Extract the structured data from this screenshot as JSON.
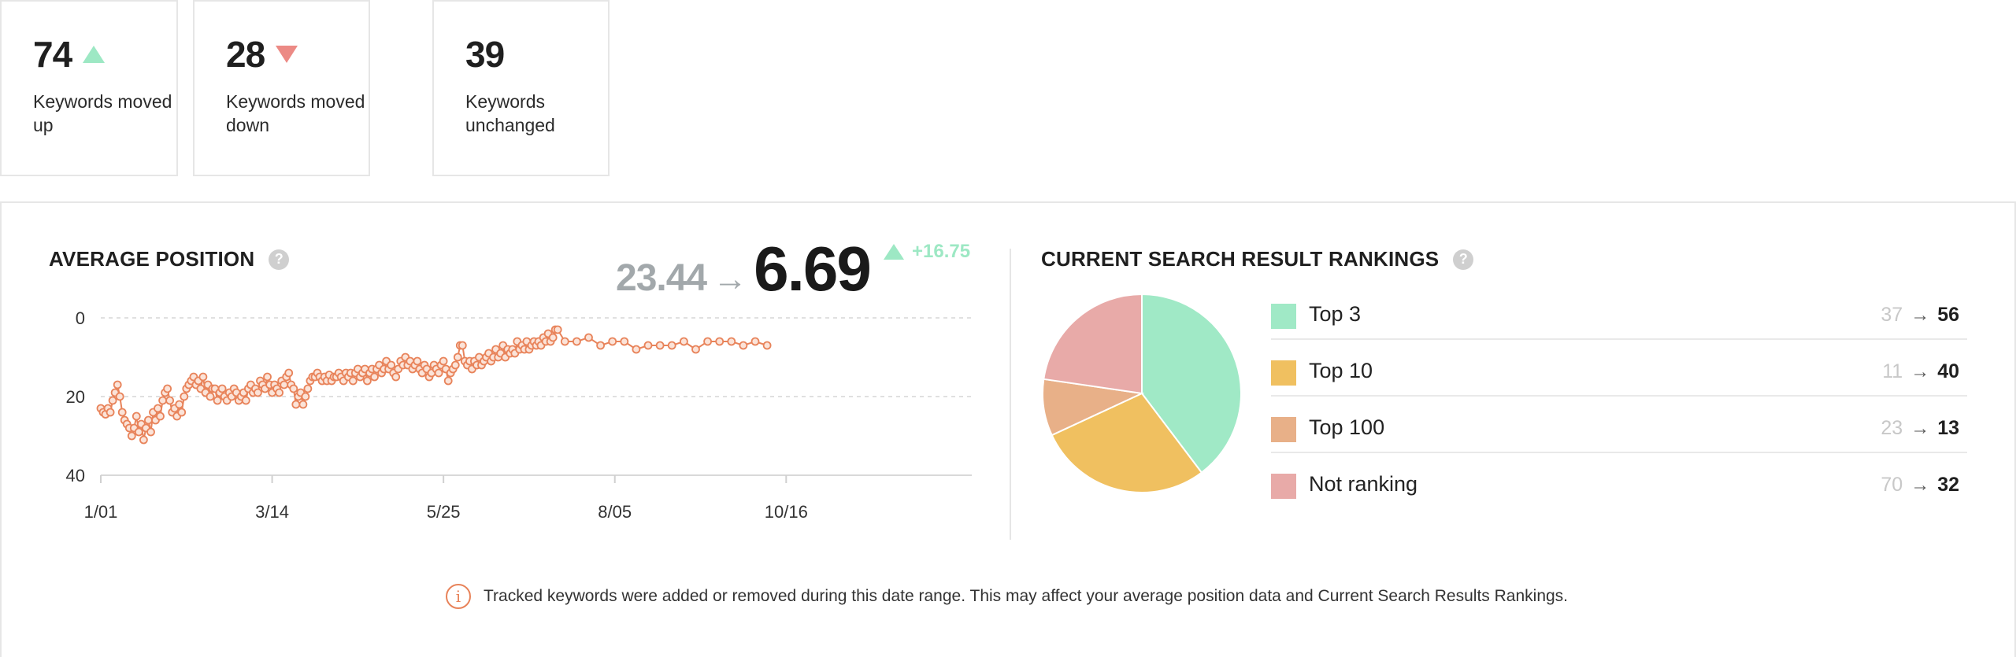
{
  "stats": [
    {
      "value": "74",
      "trend": "up",
      "label": "Keywords moved up"
    },
    {
      "value": "28",
      "trend": "down",
      "label": "Keywords moved down"
    },
    {
      "value": "39",
      "trend": "none",
      "label": "Keywords unchanged"
    }
  ],
  "average_position": {
    "title": "AVERAGE POSITION",
    "help": "?",
    "from": "23.44",
    "arrow": "→",
    "to": "6.69",
    "delta": "+16.75",
    "trend": "up"
  },
  "chart_data": {
    "type": "line",
    "title": "",
    "xlabel": "",
    "ylabel": "",
    "y_inverted": true,
    "ylim": [
      0,
      40
    ],
    "y_ticks": [
      "0",
      "20",
      "40"
    ],
    "x_ticks": [
      {
        "label": "1/01",
        "day": 0
      },
      {
        "label": "3/14",
        "day": 72
      },
      {
        "label": "5/25",
        "day": 144
      },
      {
        "label": "8/05",
        "day": 216
      },
      {
        "label": "10/16",
        "day": 288
      }
    ],
    "grid": true,
    "line_color": "#e8835a",
    "series": [
      {
        "points": [
          [
            0,
            23
          ],
          [
            1,
            24
          ],
          [
            2,
            24.5
          ],
          [
            3,
            23
          ],
          [
            4,
            24
          ],
          [
            5,
            21
          ],
          [
            6,
            19
          ],
          [
            7,
            17
          ],
          [
            8,
            20
          ],
          [
            9,
            24
          ],
          [
            10,
            26
          ],
          [
            11,
            27
          ],
          [
            12,
            28
          ],
          [
            13,
            30
          ],
          [
            14,
            28
          ],
          [
            15,
            25
          ],
          [
            16,
            29
          ],
          [
            17,
            27
          ],
          [
            18,
            31
          ],
          [
            19,
            28
          ],
          [
            20,
            26
          ],
          [
            21,
            29
          ],
          [
            22,
            24
          ],
          [
            23,
            26
          ],
          [
            24,
            23
          ],
          [
            25,
            25
          ],
          [
            26,
            21
          ],
          [
            27,
            19
          ],
          [
            28,
            18
          ],
          [
            29,
            21
          ],
          [
            30,
            24
          ],
          [
            31,
            23
          ],
          [
            32,
            25
          ],
          [
            33,
            22
          ],
          [
            34,
            24
          ],
          [
            35,
            20
          ],
          [
            36,
            18
          ],
          [
            37,
            17
          ],
          [
            38,
            16
          ],
          [
            39,
            15
          ],
          [
            40,
            17
          ],
          [
            41,
            16
          ],
          [
            42,
            18
          ],
          [
            43,
            15
          ],
          [
            44,
            19
          ],
          [
            45,
            17
          ],
          [
            46,
            20
          ],
          [
            47,
            18
          ],
          [
            48,
            18
          ],
          [
            49,
            21
          ],
          [
            50,
            19
          ],
          [
            51,
            18
          ],
          [
            52,
            20
          ],
          [
            53,
            21
          ],
          [
            54,
            19
          ],
          [
            55,
            20
          ],
          [
            56,
            18
          ],
          [
            57,
            19
          ],
          [
            58,
            21
          ],
          [
            59,
            20
          ],
          [
            60,
            19
          ],
          [
            61,
            21
          ],
          [
            62,
            18
          ],
          [
            63,
            17
          ],
          [
            64,
            19
          ],
          [
            65,
            18
          ],
          [
            66,
            19
          ],
          [
            67,
            16
          ],
          [
            68,
            17
          ],
          [
            69,
            18
          ],
          [
            70,
            15
          ],
          [
            71,
            17
          ],
          [
            72,
            19
          ],
          [
            73,
            17
          ],
          [
            74,
            18
          ],
          [
            75,
            19
          ],
          [
            76,
            16
          ],
          [
            77,
            17
          ],
          [
            78,
            15
          ],
          [
            79,
            14
          ],
          [
            80,
            17
          ],
          [
            81,
            18
          ],
          [
            82,
            22
          ],
          [
            83,
            20
          ],
          [
            84,
            19
          ],
          [
            85,
            22
          ],
          [
            86,
            20
          ],
          [
            87,
            18
          ],
          [
            88,
            16
          ],
          [
            89,
            15
          ],
          [
            90,
            15
          ],
          [
            91,
            14
          ],
          [
            92,
            15
          ],
          [
            93,
            16
          ],
          [
            94,
            15
          ],
          [
            95,
            16
          ],
          [
            96,
            14.5
          ],
          [
            97,
            16
          ],
          [
            98,
            15
          ],
          [
            99,
            15
          ],
          [
            100,
            14
          ],
          [
            101,
            15
          ],
          [
            102,
            16
          ],
          [
            103,
            14
          ],
          [
            104,
            15
          ],
          [
            105,
            14
          ],
          [
            106,
            16
          ],
          [
            107,
            14
          ],
          [
            108,
            13
          ],
          [
            109,
            15
          ],
          [
            110,
            14
          ],
          [
            111,
            13
          ],
          [
            112,
            16
          ],
          [
            113,
            14
          ],
          [
            114,
            13
          ],
          [
            115,
            15
          ],
          [
            116,
            13
          ],
          [
            117,
            12
          ],
          [
            118,
            14
          ],
          [
            119,
            13
          ],
          [
            120,
            11
          ],
          [
            121,
            13
          ],
          [
            122,
            12
          ],
          [
            123,
            14
          ],
          [
            124,
            15
          ],
          [
            125,
            13
          ],
          [
            126,
            11
          ],
          [
            127,
            12
          ],
          [
            128,
            10
          ],
          [
            129,
            12
          ],
          [
            130,
            11
          ],
          [
            131,
            13
          ],
          [
            132,
            12
          ],
          [
            133,
            11
          ],
          [
            134,
            13
          ],
          [
            135,
            14
          ],
          [
            136,
            12
          ],
          [
            137,
            13
          ],
          [
            138,
            15
          ],
          [
            139,
            14
          ],
          [
            140,
            12
          ],
          [
            141,
            13
          ],
          [
            142,
            14
          ],
          [
            143,
            12
          ],
          [
            144,
            11
          ],
          [
            145,
            13
          ],
          [
            146,
            16
          ],
          [
            147,
            14
          ],
          [
            148,
            13
          ],
          [
            149,
            12
          ],
          [
            150,
            10
          ],
          [
            151,
            7
          ],
          [
            152,
            7
          ],
          [
            153,
            11
          ],
          [
            154,
            12
          ],
          [
            155,
            11
          ],
          [
            156,
            13
          ],
          [
            157,
            11
          ],
          [
            158,
            12
          ],
          [
            159,
            10
          ],
          [
            160,
            12
          ],
          [
            161,
            11
          ],
          [
            162,
            10
          ],
          [
            163,
            9
          ],
          [
            164,
            11
          ],
          [
            165,
            10
          ],
          [
            166,
            8
          ],
          [
            167,
            10
          ],
          [
            168,
            9
          ],
          [
            169,
            7
          ],
          [
            170,
            10
          ],
          [
            171,
            8
          ],
          [
            172,
            9
          ],
          [
            173,
            8
          ],
          [
            174,
            9
          ],
          [
            175,
            6
          ],
          [
            176,
            8
          ],
          [
            177,
            7
          ],
          [
            178,
            8
          ],
          [
            179,
            6
          ],
          [
            180,
            8
          ],
          [
            181,
            7
          ],
          [
            182,
            6
          ],
          [
            183,
            7
          ],
          [
            184,
            6
          ],
          [
            185,
            7
          ],
          [
            186,
            5
          ],
          [
            187,
            6
          ],
          [
            188,
            4
          ],
          [
            189,
            6
          ],
          [
            190,
            5
          ],
          [
            191,
            3
          ],
          [
            192,
            3
          ],
          [
            195,
            6
          ],
          [
            200,
            6
          ],
          [
            205,
            5
          ],
          [
            210,
            7
          ],
          [
            215,
            6
          ],
          [
            220,
            6
          ],
          [
            225,
            8
          ],
          [
            230,
            7
          ],
          [
            235,
            7
          ],
          [
            240,
            7
          ],
          [
            245,
            6
          ],
          [
            250,
            8
          ],
          [
            255,
            6
          ],
          [
            260,
            6
          ],
          [
            265,
            6
          ],
          [
            270,
            7
          ],
          [
            275,
            6
          ],
          [
            280,
            7
          ]
        ]
      }
    ]
  },
  "rankings": {
    "title": "CURRENT SEARCH RESULT RANKINGS",
    "help": "?",
    "arrow": "→",
    "items": [
      {
        "label": "Top 3",
        "from": "37",
        "to": "56",
        "color": "#a0e9c6"
      },
      {
        "label": "Top 10",
        "from": "11",
        "to": "40",
        "color": "#f0c060"
      },
      {
        "label": "Top 100",
        "from": "23",
        "to": "13",
        "color": "#e8b088"
      },
      {
        "label": "Not ranking",
        "from": "70",
        "to": "32",
        "color": "#e8aaa8"
      }
    ]
  },
  "pie_data": {
    "type": "pie",
    "values": [
      56,
      40,
      13,
      32
    ],
    "colors": [
      "#a0e9c6",
      "#f0c060",
      "#e8b088",
      "#e8aaa8"
    ]
  },
  "notice": {
    "icon": "info-icon",
    "glyph": "i",
    "text": "Tracked keywords were added or removed during this date range. This may affect your average position data and Current Search Results Rankings."
  }
}
